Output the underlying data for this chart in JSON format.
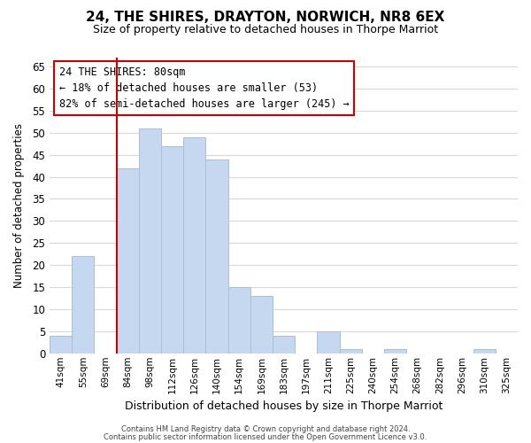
{
  "title": "24, THE SHIRES, DRAYTON, NORWICH, NR8 6EX",
  "subtitle": "Size of property relative to detached houses in Thorpe Marriot",
  "xlabel": "Distribution of detached houses by size in Thorpe Marriot",
  "ylabel": "Number of detached properties",
  "footer_line1": "Contains HM Land Registry data © Crown copyright and database right 2024.",
  "footer_line2": "Contains public sector information licensed under the Open Government Licence v3.0.",
  "annotation_title": "24 THE SHIRES: 80sqm",
  "annotation_line1": "← 18% of detached houses are smaller (53)",
  "annotation_line2": "82% of semi-detached houses are larger (245) →",
  "bar_labels": [
    "41sqm",
    "55sqm",
    "69sqm",
    "84sqm",
    "98sqm",
    "112sqm",
    "126sqm",
    "140sqm",
    "154sqm",
    "169sqm",
    "183sqm",
    "197sqm",
    "211sqm",
    "225sqm",
    "240sqm",
    "254sqm",
    "268sqm",
    "282sqm",
    "296sqm",
    "310sqm",
    "325sqm"
  ],
  "bar_values": [
    4,
    22,
    0,
    42,
    51,
    47,
    49,
    44,
    15,
    13,
    4,
    0,
    5,
    1,
    0,
    1,
    0,
    0,
    0,
    1,
    0
  ],
  "bar_color": "#c5d8f0",
  "bar_edge_color": "#a8bfd8",
  "grid_color": "#d8d8d8",
  "vline_color": "#cc0000",
  "ylim": [
    0,
    67
  ],
  "yticks": [
    0,
    5,
    10,
    15,
    20,
    25,
    30,
    35,
    40,
    45,
    50,
    55,
    60,
    65
  ],
  "background_color": "#ffffff",
  "annotation_box_edge": "#cc0000",
  "title_fontsize": 11,
  "subtitle_fontsize": 9
}
